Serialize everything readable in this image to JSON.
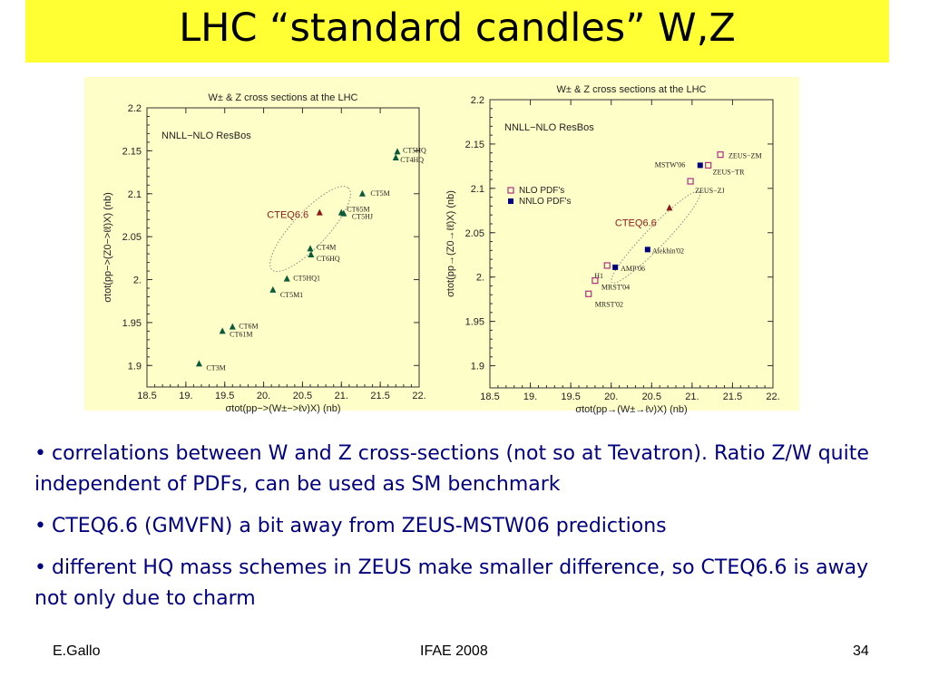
{
  "slide": {
    "title": "LHC “standard candles” W,Z",
    "bullets": [
      "correlations between W and Z cross-sections (not so at Tevatron). Ratio Z/W quite independent of PDFs, can be used as SM benchmark",
      "CTEQ6.6 (GMVFN) a bit  away from ZEUS-MSTW06 predictions",
      "different HQ mass schemes in ZEUS make smaller difference, so CTEQ6.6 is away not only due to charm"
    ],
    "bullet_symbol": "•",
    "footer": {
      "left": "E.Gallo",
      "center": "IFAE 2008",
      "right": "34"
    }
  },
  "colors": {
    "title_bar": "#ffff33",
    "panel": "#fefec8",
    "bullet_text": "#000080",
    "cteq": "#8b1a1a",
    "nnlo": "#000080",
    "nlo": "#b03080"
  },
  "chart_data": [
    {
      "type": "scatter",
      "title": "W± & Z cross sections at the LHC",
      "inner_label": "NNLL−NLO ResBos",
      "xlabel": "σtot(pp−>(W±−>ℓν)X) (nb)",
      "ylabel": "σtot(pp−>(Z0−>ℓℓ)X) (nb)",
      "xlim": [
        18.5,
        22.0
      ],
      "ylim": [
        1.875,
        2.2
      ],
      "xticks": [
        "18.5",
        "19.",
        "19.5",
        "20.",
        "20.5",
        "21.",
        "21.5",
        "22."
      ],
      "yticks": [
        "1.9",
        "1.95",
        "2.",
        "2.05",
        "2.1",
        "2.15",
        "2.2"
      ],
      "grid": false,
      "annotation_ellipse": {
        "center": [
          20.6,
          2.059
        ],
        "rx": 0.72,
        "ry": 0.053,
        "angle_deg": -47
      },
      "series": [
        {
          "marker": "triangle",
          "color": "#0a5a3a",
          "points": [
            {
              "label": "CT3M",
              "x": 19.17,
              "y": 1.902
            },
            {
              "label": "CT6M",
              "x": 19.6,
              "y": 1.945
            },
            {
              "label": "CT61M",
              "x": 19.47,
              "y": 1.94
            },
            {
              "label": "CT5M1",
              "x": 20.12,
              "y": 1.988
            },
            {
              "label": "CT5HQ1",
              "x": 20.3,
              "y": 2.001
            },
            {
              "label": "CT4M",
              "x": 20.6,
              "y": 2.036
            },
            {
              "label": "CT6HQ",
              "x": 20.61,
              "y": 2.029
            },
            {
              "label": "CT65M",
              "x": 21.0,
              "y": 2.078
            },
            {
              "label": "CT5HJ",
              "x": 21.03,
              "y": 2.077
            },
            {
              "label": "CT5M",
              "x": 21.27,
              "y": 2.1
            },
            {
              "label": "CT5HQ",
              "x": 21.72,
              "y": 2.149
            },
            {
              "label": "CT4HQ",
              "x": 21.7,
              "y": 2.142
            }
          ]
        },
        {
          "marker": "triangle",
          "color": "#8b1a1a",
          "points": [
            {
              "label": "CTEQ6.6",
              "x": 20.72,
              "y": 2.078
            }
          ]
        }
      ]
    },
    {
      "type": "scatter",
      "title": "W± & Z cross sections at the LHC",
      "inner_label": "NNLL−NLO ResBos",
      "xlabel": "σtot(pp→(W±→ℓν)X) (nb)",
      "ylabel": "σtot(pp→(Z0→ℓℓ)X) (nb)",
      "xlim": [
        18.5,
        22.0
      ],
      "ylim": [
        1.875,
        2.2
      ],
      "xticks": [
        "18.5",
        "19.",
        "19.5",
        "20.",
        "20.5",
        "21.",
        "21.5",
        "22."
      ],
      "yticks": [
        "1.9",
        "1.95",
        "2.",
        "2.05",
        "2.1",
        "2.15",
        "2.2"
      ],
      "grid": false,
      "legend": {
        "entries": [
          "NLO PDF's",
          "NNLO PDF's"
        ],
        "placement": "upper-left"
      },
      "annotation_ellipse": {
        "center": [
          20.55,
          2.045
        ],
        "rx": 0.78,
        "ry": 0.03,
        "angle_deg": -46
      },
      "series": [
        {
          "name": "NLO PDF's",
          "marker": "open-square",
          "color": "#b03080",
          "points": [
            {
              "label": "ZEUS−ZM",
              "x": 21.35,
              "y": 2.138
            },
            {
              "label": "ZEUS−TR",
              "x": 21.2,
              "y": 2.126
            },
            {
              "label": "ZEUS−ZJ",
              "x": 20.98,
              "y": 2.108
            },
            {
              "label": "H1",
              "x": 19.95,
              "y": 2.013
            },
            {
              "label": "MRST'04",
              "x": 19.8,
              "y": 1.996
            },
            {
              "label": "MRST'02",
              "x": 19.72,
              "y": 1.981
            }
          ]
        },
        {
          "name": "NNLO PDF's",
          "marker": "filled-square",
          "color": "#000080",
          "points": [
            {
              "label": "MSTW'06",
              "x": 21.1,
              "y": 2.126
            },
            {
              "label": "Alekhin'02",
              "x": 20.45,
              "y": 2.031
            },
            {
              "label": "AMP'06",
              "x": 20.05,
              "y": 2.011
            }
          ]
        },
        {
          "marker": "triangle",
          "color": "#8b1a1a",
          "points": [
            {
              "label": "CTEQ6.6",
              "x": 20.72,
              "y": 2.078
            }
          ]
        }
      ]
    }
  ]
}
